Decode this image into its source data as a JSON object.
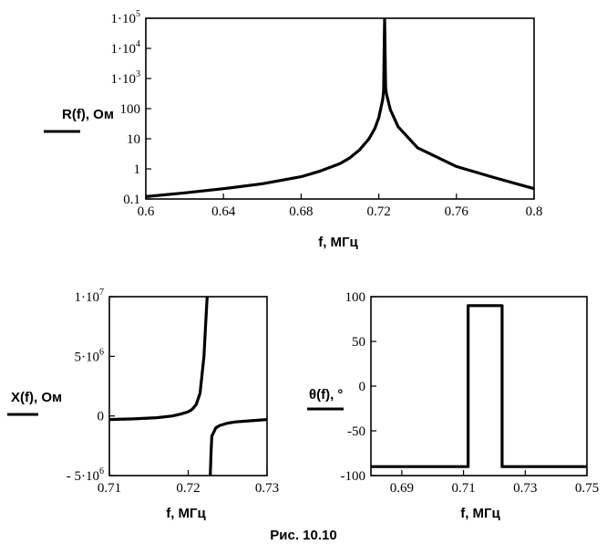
{
  "caption": "Рис. 10.10",
  "chart_data": [
    {
      "type": "line",
      "id": "r",
      "xlabel": "f, МГц",
      "ylabel": "R(f), Ом",
      "xlim": [
        0.6,
        0.8
      ],
      "ylim": [
        0.1,
        100000
      ],
      "yscale": "log",
      "grid": false,
      "xticks": [
        "0.6",
        "0.64",
        "0.68",
        "0.72",
        "0.76",
        "0.8"
      ],
      "yticks": [
        {
          "v": 0.1,
          "m": "0.1",
          "e": ""
        },
        {
          "v": 1,
          "m": "1",
          "e": ""
        },
        {
          "v": 10,
          "m": "10",
          "e": ""
        },
        {
          "v": 100,
          "m": "100",
          "e": ""
        },
        {
          "v": 1000,
          "m": "1·10",
          "e": "3"
        },
        {
          "v": 10000,
          "m": "1·10",
          "e": "4"
        },
        {
          "v": 100000,
          "m": "1·10",
          "e": "5"
        }
      ],
      "series": [
        {
          "x": [
            0.6,
            0.62,
            0.64,
            0.66,
            0.68,
            0.69,
            0.7,
            0.705,
            0.71,
            0.715,
            0.718,
            0.72,
            0.722,
            0.7225,
            0.723,
            0.7235,
            0.724,
            0.726,
            0.73,
            0.74,
            0.76,
            0.78,
            0.8
          ],
          "y": [
            0.12,
            0.16,
            0.22,
            0.32,
            0.55,
            0.85,
            1.5,
            2.3,
            4.2,
            10,
            22,
            50,
            200,
            400,
            100000,
            500,
            300,
            90,
            25,
            5,
            1.2,
            0.5,
            0.22
          ]
        }
      ]
    },
    {
      "type": "line",
      "id": "x",
      "xlabel": "f, МГц",
      "ylabel": "X(f), Ом",
      "xlim": [
        0.71,
        0.73
      ],
      "ylim": [
        -5000000,
        10000000
      ],
      "grid": false,
      "xticks": [
        "0.71",
        "0.72",
        "0.73"
      ],
      "yticks": [
        {
          "v": -5000000,
          "m": "- 5·10",
          "e": "6"
        },
        {
          "v": 0,
          "m": "0",
          "e": ""
        },
        {
          "v": 5000000,
          "m": "5·10",
          "e": "6"
        },
        {
          "v": 10000000,
          "m": "1·10",
          "e": "7"
        }
      ],
      "series": [
        {
          "x": [
            0.71,
            0.713,
            0.716,
            0.718,
            0.719,
            0.72,
            0.7205,
            0.721,
            0.7215,
            0.722,
            0.7222,
            0.7224
          ],
          "y": [
            -300000,
            -250000,
            -150000,
            0,
            150000,
            350000,
            550000,
            950000,
            1900000,
            5000000,
            7500000,
            10000000
          ]
        },
        {
          "x": [
            0.7228,
            0.7229,
            0.723,
            0.7235,
            0.724,
            0.725,
            0.726,
            0.728,
            0.73
          ],
          "y": [
            -5000000,
            -3000000,
            -1700000,
            -1000000,
            -800000,
            -600000,
            -500000,
            -400000,
            -300000
          ]
        }
      ]
    },
    {
      "type": "line",
      "id": "theta",
      "xlabel": "f, МГц",
      "ylabel": "θ(f), °",
      "xlim": [
        0.68,
        0.75
      ],
      "ylim": [
        -100,
        100
      ],
      "grid": false,
      "xticks": [
        "0.69",
        "0.71",
        "0.73",
        "0.75"
      ],
      "yticks": [
        {
          "v": -100,
          "m": "-100",
          "e": ""
        },
        {
          "v": -50,
          "m": "-50",
          "e": ""
        },
        {
          "v": 0,
          "m": "0",
          "e": ""
        },
        {
          "v": 50,
          "m": "50",
          "e": ""
        },
        {
          "v": 100,
          "m": "100",
          "e": ""
        }
      ],
      "series": [
        {
          "x": [
            0.68,
            0.7115,
            0.7115,
            0.7225,
            0.7225,
            0.75
          ],
          "y": [
            -90,
            -90,
            90,
            90,
            -90,
            -90
          ]
        }
      ]
    }
  ]
}
